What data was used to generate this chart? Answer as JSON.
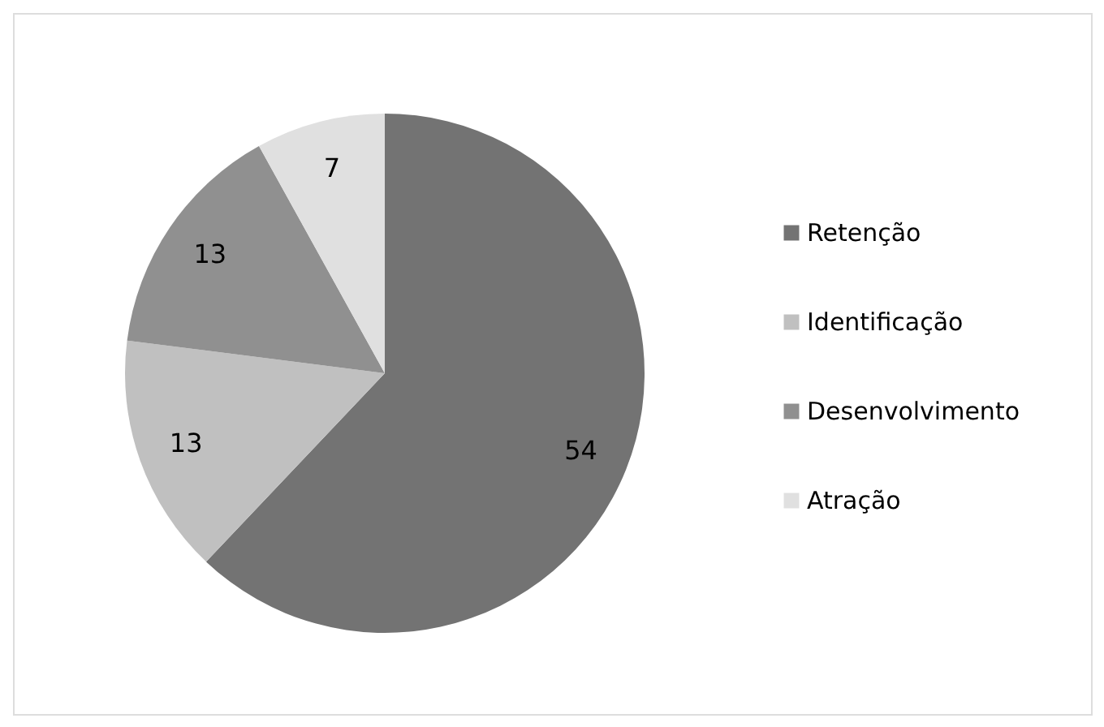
{
  "chart_data": {
    "type": "pie",
    "categories": [
      "Retenção",
      "Identificação",
      "Desenvolvimento",
      "Atração"
    ],
    "values": [
      54,
      13,
      13,
      7
    ],
    "colors": [
      "#737373",
      "#c0c0c0",
      "#909090",
      "#e0e0e0"
    ],
    "data_labels": true,
    "legend": "right"
  }
}
